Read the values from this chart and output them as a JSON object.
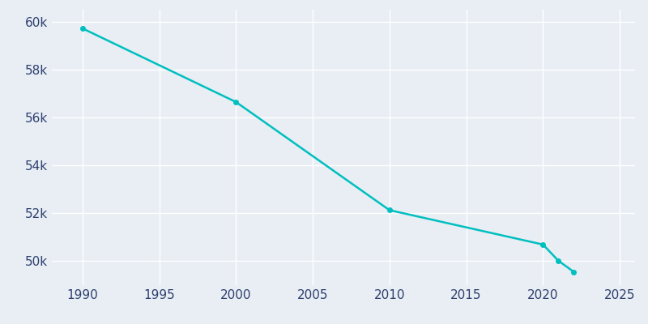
{
  "years": [
    1990,
    2000,
    2010,
    2020,
    2021,
    2022
  ],
  "population": [
    59718,
    56646,
    52131,
    50695,
    50022,
    49557
  ],
  "line_color": "#00BFBF",
  "marker_color": "#00BFBF",
  "background_color": "#E8EEF4",
  "grid_color": "#FFFFFF",
  "tick_label_color": "#2E3F6F",
  "xlim": [
    1988,
    2026
  ],
  "ylim": [
    49000,
    60500
  ],
  "xticks": [
    1990,
    1995,
    2000,
    2005,
    2010,
    2015,
    2020,
    2025
  ],
  "ytick_values": [
    50000,
    52000,
    54000,
    56000,
    58000,
    60000
  ],
  "ytick_labels": [
    "50k",
    "52k",
    "54k",
    "56k",
    "58k",
    "60k"
  ],
  "linewidth": 1.8,
  "markersize": 4
}
